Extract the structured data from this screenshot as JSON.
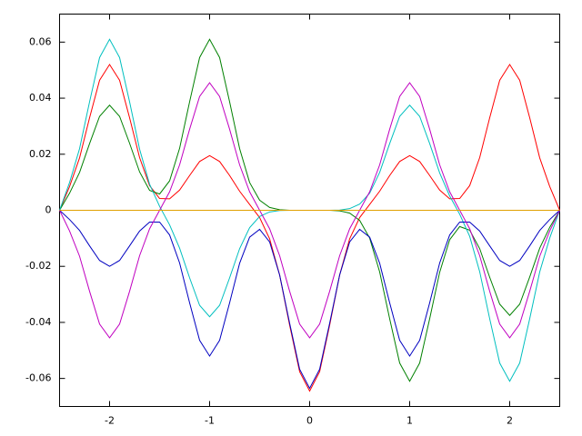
{
  "chart_data": {
    "type": "line",
    "x": [
      -2.5,
      -2.4,
      -2.3,
      -2.2,
      -2.1,
      -2.0,
      -1.9,
      -1.8,
      -1.7,
      -1.6,
      -1.5,
      -1.4,
      -1.3,
      -1.2,
      -1.1,
      -1.0,
      -0.9,
      -0.8,
      -0.7,
      -0.6,
      -0.5,
      -0.4,
      -0.3,
      -0.2,
      -0.1,
      0,
      0.1,
      0.2,
      0.3,
      0.4,
      0.5,
      0.6,
      0.7,
      0.8,
      0.9,
      1.0,
      1.1,
      1.2,
      1.3,
      1.4,
      1.5,
      1.6,
      1.7,
      1.8,
      1.9,
      2.0,
      2.1,
      2.2,
      2.3,
      2.4,
      2.5
    ],
    "series": [
      {
        "color": "#ff0000",
        "values": [
          0,
          0.0085,
          0.0187,
          0.033,
          0.0464,
          0.052,
          0.0464,
          0.033,
          0.0188,
          0.0088,
          0.0042,
          0.0041,
          0.0072,
          0.0124,
          0.0174,
          0.0195,
          0.0174,
          0.0124,
          0.0068,
          0.0021,
          -0.0026,
          -0.0102,
          -0.0231,
          -0.041,
          -0.0576,
          -0.0645,
          -0.0576,
          -0.041,
          -0.0231,
          -0.0102,
          -0.0026,
          0.0021,
          0.0068,
          0.0124,
          0.0174,
          0.0195,
          0.0174,
          0.0124,
          0.0072,
          0.0041,
          0.0042,
          0.0088,
          0.0188,
          0.033,
          0.0464,
          0.052,
          0.0464,
          0.033,
          0.0187,
          0.0085,
          0
        ]
      },
      {
        "color": "#008000",
        "values": [
          0,
          0.0061,
          0.0135,
          0.0238,
          0.0335,
          0.0375,
          0.0335,
          0.0239,
          0.0137,
          0.0071,
          0.0058,
          0.0105,
          0.0221,
          0.0387,
          0.0545,
          0.061,
          0.0545,
          0.0387,
          0.022,
          0.0099,
          0.0036,
          0.001,
          0.0002,
          0,
          0,
          0,
          0,
          0,
          -0.0002,
          -0.001,
          -0.0036,
          -0.0099,
          -0.022,
          -0.0387,
          -0.0545,
          -0.061,
          -0.0545,
          -0.0387,
          -0.0221,
          -0.0105,
          -0.0058,
          -0.0071,
          -0.0137,
          -0.0239,
          -0.0335,
          -0.0375,
          -0.0335,
          -0.0238,
          -0.0135,
          -0.0061,
          0
        ]
      },
      {
        "color": "#00bfbf",
        "values": [
          0,
          0.0099,
          0.022,
          0.0387,
          0.0545,
          0.061,
          0.0545,
          0.0387,
          0.0218,
          0.0093,
          0.0014,
          -0.0052,
          -0.0135,
          -0.0241,
          -0.0339,
          -0.038,
          -0.0339,
          -0.0241,
          -0.0137,
          -0.0062,
          -0.0022,
          -0.0006,
          -0.0001,
          0,
          0,
          0,
          0,
          0,
          0.0001,
          0.0006,
          0.0022,
          0.0061,
          0.0135,
          0.0238,
          0.0335,
          0.0375,
          0.0335,
          0.0238,
          0.0133,
          0.0051,
          -0.0014,
          -0.0093,
          -0.0219,
          -0.0387,
          -0.0545,
          -0.061,
          -0.0545,
          -0.0387,
          -0.022,
          -0.0099,
          0
        ]
      },
      {
        "color": "#0000c0",
        "values": [
          0,
          -0.0033,
          -0.0072,
          -0.0127,
          -0.0179,
          -0.02,
          -0.0179,
          -0.0127,
          -0.0074,
          -0.0042,
          -0.0042,
          -0.0088,
          -0.0188,
          -0.033,
          -0.0464,
          -0.052,
          -0.0464,
          -0.033,
          -0.0189,
          -0.0096,
          -0.0068,
          -0.0113,
          -0.0231,
          -0.0403,
          -0.0567,
          -0.0635,
          -0.0567,
          -0.0403,
          -0.0231,
          -0.0113,
          -0.0068,
          -0.0096,
          -0.0189,
          -0.033,
          -0.0464,
          -0.052,
          -0.0464,
          -0.033,
          -0.0188,
          -0.0088,
          -0.0042,
          -0.0042,
          -0.0074,
          -0.0127,
          -0.0179,
          -0.02,
          -0.0179,
          -0.0127,
          -0.0072,
          -0.0033,
          0
        ]
      },
      {
        "color": "#c000c0",
        "values": [
          0,
          -0.0074,
          -0.0164,
          -0.0289,
          -0.0406,
          -0.0455,
          -0.0406,
          -0.0289,
          -0.0162,
          -0.0066,
          0,
          0.0066,
          0.0162,
          0.0289,
          0.0406,
          0.0455,
          0.0406,
          0.0289,
          0.0162,
          0.0066,
          0,
          -0.0066,
          -0.0162,
          -0.0289,
          -0.0406,
          -0.0455,
          -0.0406,
          -0.0289,
          -0.0162,
          -0.0066,
          0,
          0.0066,
          0.0162,
          0.0289,
          0.0406,
          0.0455,
          0.0406,
          0.0289,
          0.0162,
          0.0066,
          0,
          -0.0066,
          -0.0162,
          -0.0289,
          -0.0406,
          -0.0455,
          -0.0406,
          -0.0289,
          -0.0164,
          -0.0074,
          0
        ]
      },
      {
        "color": "#e0a000",
        "values": [
          0,
          0,
          0,
          0,
          0,
          0,
          0,
          0,
          0,
          0,
          0,
          0,
          0,
          0,
          0,
          0,
          0,
          0,
          0,
          0,
          0,
          0,
          0,
          0,
          0,
          0,
          0,
          0,
          0,
          0,
          0,
          0,
          0,
          0,
          0,
          0,
          0,
          0,
          0,
          0,
          0,
          0,
          0,
          0,
          0,
          0,
          0,
          0,
          0,
          0,
          0
        ]
      }
    ],
    "xlim": [
      -2.5,
      2.5
    ],
    "xticks": [
      -2,
      -1,
      0,
      1,
      2
    ],
    "ylim": [
      -0.07,
      0.07
    ],
    "yticks": [
      -0.06,
      -0.04,
      -0.02,
      0,
      0.02,
      0.04,
      0.06
    ],
    "grid": false
  }
}
